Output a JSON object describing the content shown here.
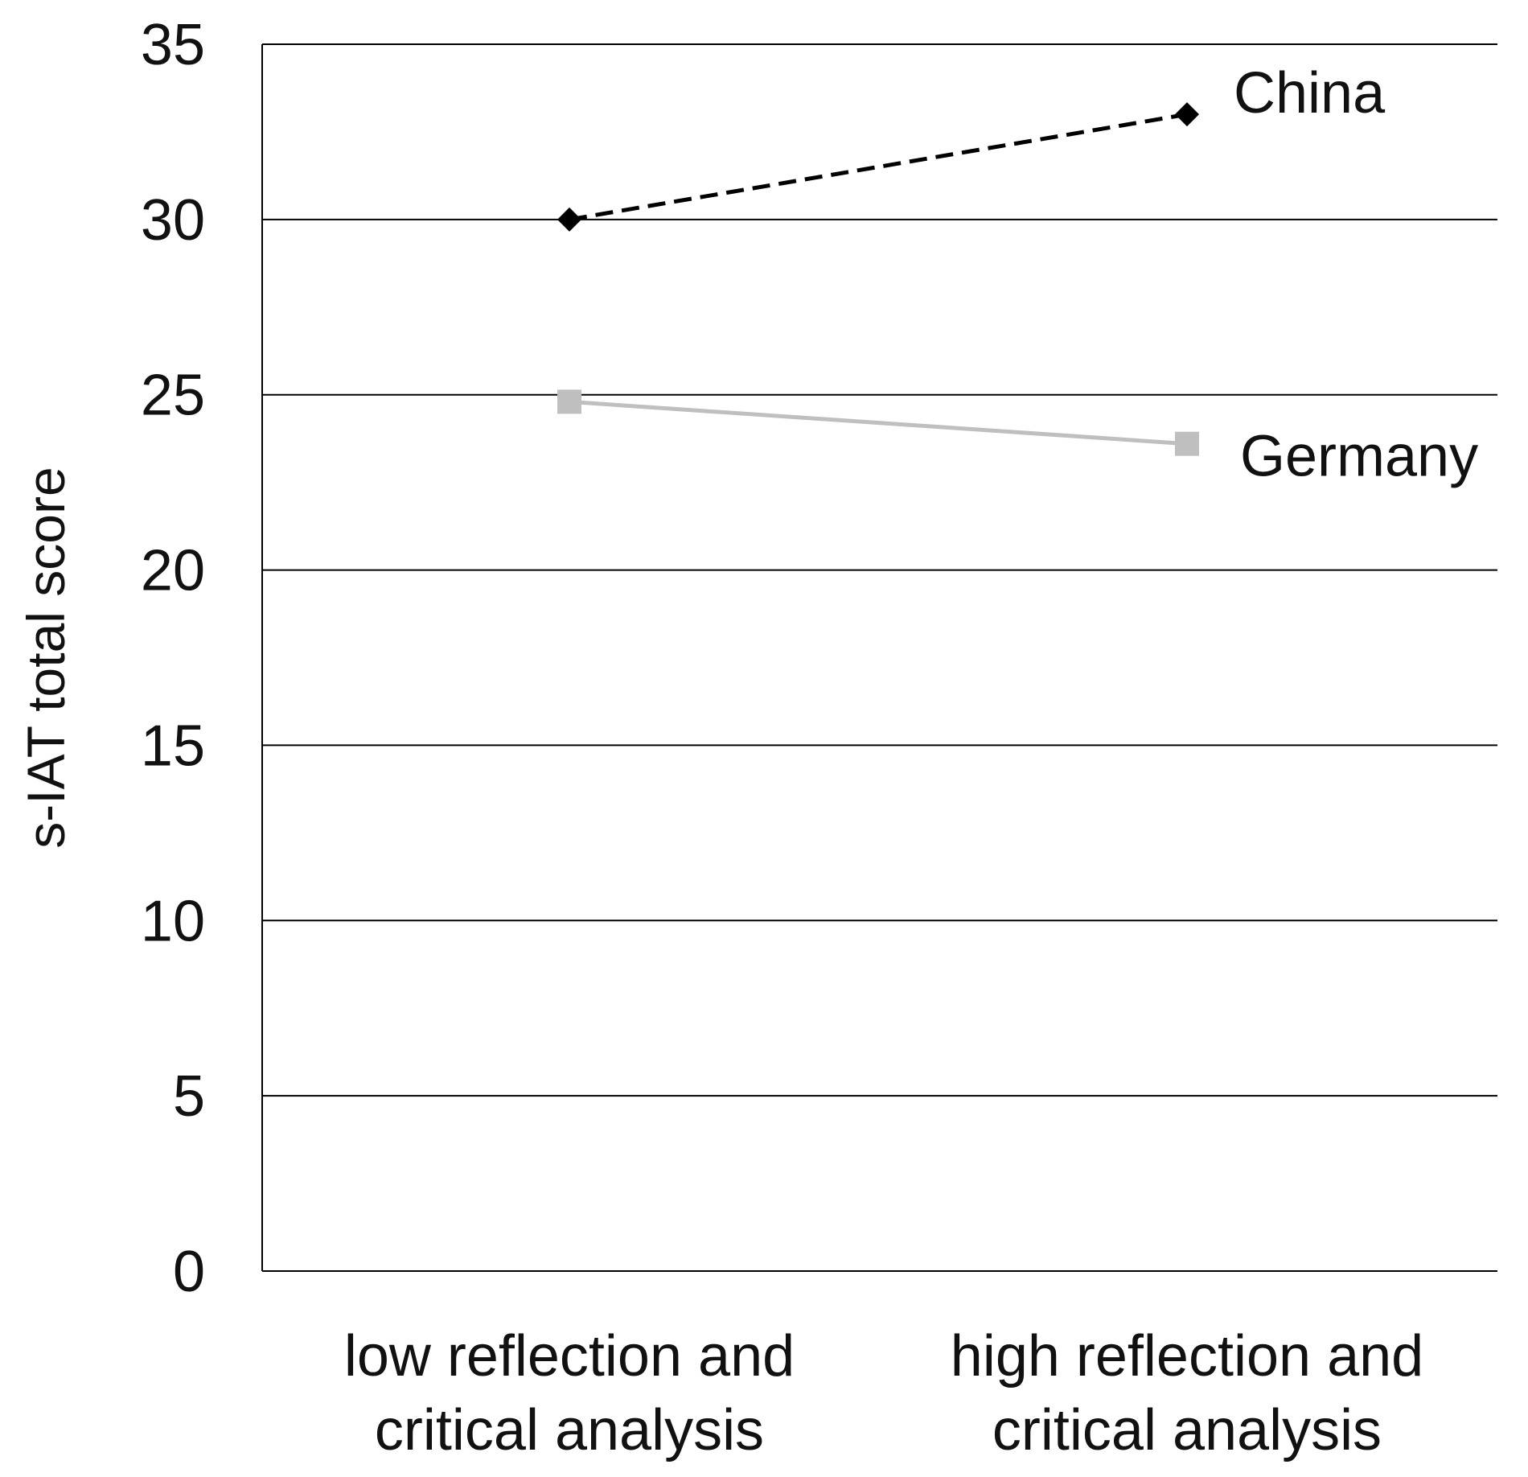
{
  "chart_data": {
    "type": "line",
    "title": "",
    "xlabel": "",
    "ylabel": "s-IAT total score",
    "categories": [
      [
        "low reflection and",
        "critical analysis"
      ],
      [
        "high reflection and",
        "critical analysis"
      ]
    ],
    "ylim": [
      0,
      35
    ],
    "yticks": [
      0,
      5,
      10,
      15,
      20,
      25,
      30,
      35
    ],
    "grid": true,
    "legend": "none (series labelled directly at line ends)",
    "series": [
      {
        "name": "China",
        "values": [
          30.0,
          33.0
        ],
        "color": "#000000",
        "line_style": "dashed",
        "marker": "diamond"
      },
      {
        "name": "Germany",
        "values": [
          24.8,
          23.6
        ],
        "color": "#bfbfbf",
        "line_style": "solid",
        "marker": "square"
      }
    ]
  }
}
